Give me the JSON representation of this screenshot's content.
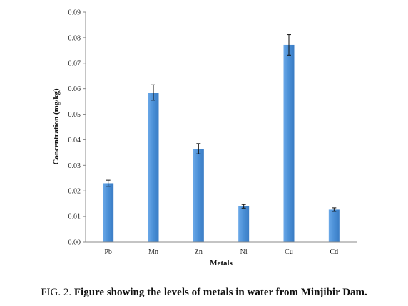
{
  "caption": {
    "label": "FIG. 2.",
    "text": "Figure showing the levels of metals in water from Minjibir Dam."
  },
  "chart_data": {
    "type": "bar",
    "title": "",
    "xlabel": "Metals",
    "ylabel": "Concentration (mg/kg)",
    "ylim": [
      0,
      0.09
    ],
    "yticks": [
      "0.00",
      "0.01",
      "0.02",
      "0.03",
      "0.04",
      "0.05",
      "0.06",
      "0.07",
      "0.08",
      "0.09"
    ],
    "categories": [
      "Pb",
      "Mn",
      "Zn",
      "Ni",
      "Cu",
      "Cd"
    ],
    "values": [
      0.023,
      0.0585,
      0.0365,
      0.014,
      0.0772,
      0.0127
    ],
    "errors": [
      0.0012,
      0.003,
      0.002,
      0.0007,
      0.004,
      0.0007
    ],
    "bar_color": "#4a8fd6",
    "grid": false,
    "legend": "none"
  }
}
